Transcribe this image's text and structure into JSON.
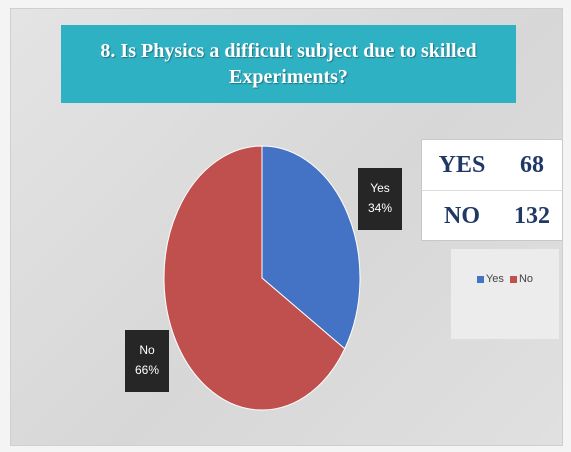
{
  "chart_data": {
    "type": "pie",
    "title": "8. Is Physics a difficult subject due to skilled Experiments?",
    "categories": [
      "Yes",
      "No"
    ],
    "values": [
      68,
      132
    ],
    "percent_labels": [
      "34%",
      "66%"
    ],
    "colors": [
      "#4472c4",
      "#c0504d"
    ],
    "legend": [
      "Yes",
      "No"
    ],
    "legend_position": "right"
  },
  "count_table": [
    {
      "label": "YES",
      "value": "68"
    },
    {
      "label": "NO",
      "value": "132"
    }
  ]
}
